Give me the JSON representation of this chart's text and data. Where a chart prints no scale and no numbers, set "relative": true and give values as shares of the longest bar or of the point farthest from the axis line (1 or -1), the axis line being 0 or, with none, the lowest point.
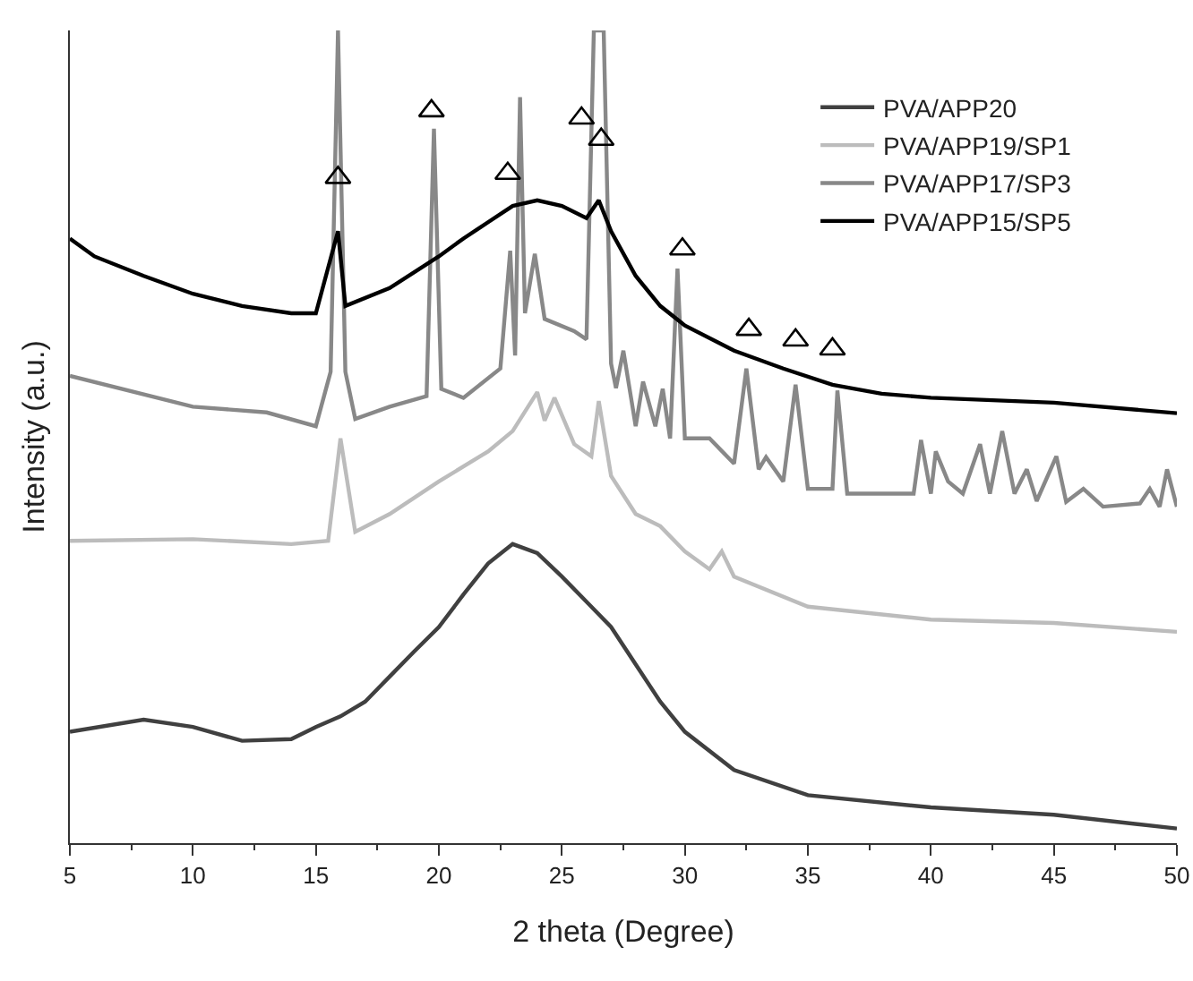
{
  "chart_data": {
    "type": "line",
    "relative": true,
    "xlabel": "2 theta (Degree)",
    "ylabel": "Intensity (a.u.)",
    "xlim": [
      5,
      50
    ],
    "xticks": [
      5,
      10,
      15,
      20,
      25,
      30,
      35,
      40,
      45,
      50
    ],
    "legend": "top right",
    "grid": false,
    "line_style": "solid",
    "series": [
      {
        "name": "PVA/APP20",
        "color": "#404040",
        "x": [
          5,
          8,
          10,
          12,
          14,
          15,
          16,
          17,
          18,
          19,
          20,
          21,
          22,
          23,
          24,
          25,
          26,
          27,
          28,
          29,
          30,
          32,
          35,
          40,
          45,
          50
        ],
        "values": [
          0.137,
          0.152,
          0.143,
          0.126,
          0.128,
          0.143,
          0.156,
          0.174,
          0.205,
          0.236,
          0.266,
          0.306,
          0.344,
          0.368,
          0.357,
          0.328,
          0.297,
          0.266,
          0.22,
          0.174,
          0.137,
          0.09,
          0.059,
          0.044,
          0.035,
          0.018
        ]
      },
      {
        "name": "PVA/APP19/SP1",
        "color": "#bcbcbc",
        "x": [
          5,
          10,
          14,
          15.5,
          16,
          16.6,
          18,
          20,
          22,
          23,
          24,
          24.3,
          24.7,
          25.5,
          26.2,
          26.5,
          27,
          28,
          29,
          30,
          31,
          31.5,
          32,
          35,
          40,
          45,
          50
        ],
        "values": [
          0.372,
          0.374,
          0.368,
          0.372,
          0.498,
          0.383,
          0.405,
          0.445,
          0.482,
          0.507,
          0.555,
          0.52,
          0.548,
          0.491,
          0.476,
          0.544,
          0.452,
          0.405,
          0.39,
          0.359,
          0.337,
          0.359,
          0.328,
          0.291,
          0.275,
          0.271,
          0.26
        ]
      },
      {
        "name": "PVA/APP17/SP3",
        "color": "#888888",
        "x": [
          5,
          10,
          13,
          15,
          15.6,
          15.9,
          16.2,
          16.6,
          18,
          19.5,
          19.8,
          20.1,
          21,
          22.5,
          22.9,
          23.1,
          23.3,
          23.5,
          23.9,
          24.3,
          25.5,
          26,
          26.3,
          26.7,
          27,
          27.2,
          27.5,
          28,
          28.3,
          28.8,
          29.1,
          29.4,
          29.7,
          30,
          31,
          32,
          32.5,
          33,
          33.3,
          34,
          34.5,
          35,
          36,
          36.2,
          36.6,
          38,
          39.3,
          39.6,
          40,
          40.2,
          40.7,
          41.3,
          42,
          42.4,
          42.9,
          43.4,
          43.9,
          44.3,
          45.1,
          45.5,
          46.2,
          47,
          48.5,
          48.9,
          49.3,
          49.6,
          50
        ],
        "values": [
          0.575,
          0.537,
          0.53,
          0.513,
          0.58,
          1,
          0.58,
          0.522,
          0.537,
          0.55,
          0.879,
          0.559,
          0.548,
          0.584,
          0.729,
          0.6,
          0.918,
          0.652,
          0.725,
          0.645,
          0.63,
          0.62,
          1,
          1,
          0.59,
          0.56,
          0.606,
          0.513,
          0.568,
          0.513,
          0.559,
          0.498,
          0.707,
          0.498,
          0.498,
          0.467,
          0.584,
          0.46,
          0.475,
          0.445,
          0.564,
          0.436,
          0.436,
          0.557,
          0.43,
          0.43,
          0.43,
          0.496,
          0.43,
          0.482,
          0.445,
          0.43,
          0.491,
          0.43,
          0.507,
          0.43,
          0.46,
          0.421,
          0.476,
          0.42,
          0.436,
          0.414,
          0.418,
          0.436,
          0.414,
          0.46,
          0.414
        ]
      },
      {
        "name": "PVA/APP15/SP5",
        "color": "#000000",
        "x": [
          5,
          6,
          8,
          10,
          12,
          14,
          15,
          15.9,
          16.2,
          18,
          20,
          21,
          22,
          23,
          24,
          25,
          26,
          26.5,
          27,
          28,
          29,
          30,
          32,
          34,
          36,
          38,
          40,
          45,
          50
        ],
        "values": [
          0.744,
          0.722,
          0.698,
          0.676,
          0.661,
          0.652,
          0.652,
          0.753,
          0.661,
          0.683,
          0.722,
          0.744,
          0.764,
          0.784,
          0.791,
          0.784,
          0.769,
          0.791,
          0.753,
          0.698,
          0.661,
          0.637,
          0.606,
          0.584,
          0.564,
          0.553,
          0.548,
          0.542,
          0.529
        ]
      },
      {
        "type": "scatter",
        "marker": "triangle",
        "color": "#000000",
        "x": [
          15.9,
          19.7,
          22.8,
          25.8,
          26.6,
          29.9,
          32.6,
          34.5,
          36.0
        ],
        "values": [
          0.819,
          0.901,
          0.824,
          0.892,
          0.866,
          0.731,
          0.632,
          0.619,
          0.608
        ]
      }
    ]
  }
}
